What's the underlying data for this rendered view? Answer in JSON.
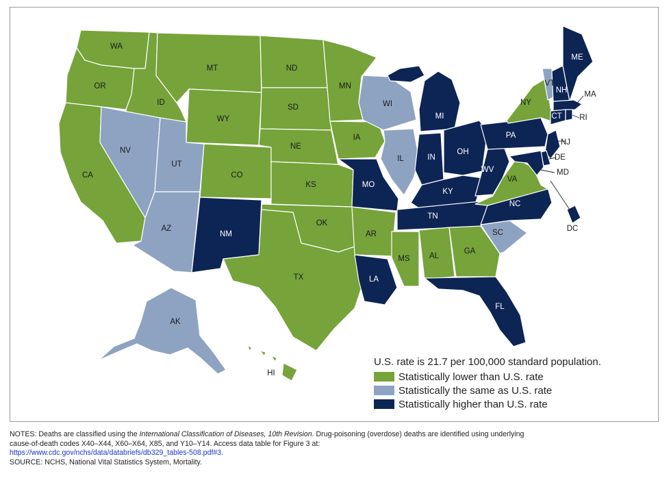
{
  "colors": {
    "lower": "#76a33a",
    "same": "#8ea3c2",
    "higher": "#0d2555",
    "outline": "#ffffff"
  },
  "legend": {
    "title": "U.S. rate is 21.7 per 100,000 standard population.",
    "items": [
      {
        "key": "lower",
        "label": "Statistically lower than U.S. rate"
      },
      {
        "key": "same",
        "label": "Statistically the same as U.S. rate"
      },
      {
        "key": "higher",
        "label": "Statistically higher than U.S. rate"
      }
    ]
  },
  "states": [
    {
      "abbr": "WA",
      "category": "lower"
    },
    {
      "abbr": "OR",
      "category": "lower"
    },
    {
      "abbr": "CA",
      "category": "lower"
    },
    {
      "abbr": "ID",
      "category": "lower"
    },
    {
      "abbr": "NV",
      "category": "same"
    },
    {
      "abbr": "MT",
      "category": "lower"
    },
    {
      "abbr": "WY",
      "category": "lower"
    },
    {
      "abbr": "UT",
      "category": "same"
    },
    {
      "abbr": "AZ",
      "category": "same"
    },
    {
      "abbr": "CO",
      "category": "lower"
    },
    {
      "abbr": "NM",
      "category": "higher"
    },
    {
      "abbr": "ND",
      "category": "lower"
    },
    {
      "abbr": "SD",
      "category": "lower"
    },
    {
      "abbr": "NE",
      "category": "lower"
    },
    {
      "abbr": "KS",
      "category": "lower"
    },
    {
      "abbr": "OK",
      "category": "lower"
    },
    {
      "abbr": "TX",
      "category": "lower"
    },
    {
      "abbr": "MN",
      "category": "lower"
    },
    {
      "abbr": "IA",
      "category": "lower"
    },
    {
      "abbr": "MO",
      "category": "higher"
    },
    {
      "abbr": "AR",
      "category": "lower"
    },
    {
      "abbr": "LA",
      "category": "higher"
    },
    {
      "abbr": "WI",
      "category": "same"
    },
    {
      "abbr": "IL",
      "category": "same"
    },
    {
      "abbr": "MI",
      "category": "higher"
    },
    {
      "abbr": "IN",
      "category": "higher"
    },
    {
      "abbr": "OH",
      "category": "higher"
    },
    {
      "abbr": "KY",
      "category": "higher"
    },
    {
      "abbr": "TN",
      "category": "higher"
    },
    {
      "abbr": "MS",
      "category": "lower"
    },
    {
      "abbr": "AL",
      "category": "lower"
    },
    {
      "abbr": "GA",
      "category": "lower"
    },
    {
      "abbr": "FL",
      "category": "higher"
    },
    {
      "abbr": "SC",
      "category": "same"
    },
    {
      "abbr": "NC",
      "category": "higher"
    },
    {
      "abbr": "VA",
      "category": "lower"
    },
    {
      "abbr": "WV",
      "category": "higher"
    },
    {
      "abbr": "PA",
      "category": "higher"
    },
    {
      "abbr": "NY",
      "category": "lower"
    },
    {
      "abbr": "VT",
      "category": "same"
    },
    {
      "abbr": "NH",
      "category": "higher"
    },
    {
      "abbr": "ME",
      "category": "higher"
    },
    {
      "abbr": "MA",
      "category": "higher"
    },
    {
      "abbr": "CT",
      "category": "higher"
    },
    {
      "abbr": "RI",
      "category": "higher"
    },
    {
      "abbr": "NJ",
      "category": "higher"
    },
    {
      "abbr": "DE",
      "category": "higher"
    },
    {
      "abbr": "MD",
      "category": "higher"
    },
    {
      "abbr": "DC",
      "category": "higher"
    },
    {
      "abbr": "AK",
      "category": "same"
    },
    {
      "abbr": "HI",
      "category": "lower"
    }
  ],
  "notes": {
    "line1_prefix": "NOTES: Deaths are classified using the ",
    "line1_italic": "International Classification of Diseases, 10th Revision",
    "line1_suffix": ". Drug-poisoning (overdose) deaths are identified using underlying",
    "line2": "cause-of-death codes X40–X44, X60–X64, X85, and Y10–Y14. Access data table for Figure 3 at:",
    "link": "https://www.cdc.gov/nchs/data/databriefs/db329_tables-508.pdf#3",
    "link_suffix": ".",
    "source": "SOURCE: NCHS, National Vital Statistics System, Mortality."
  }
}
